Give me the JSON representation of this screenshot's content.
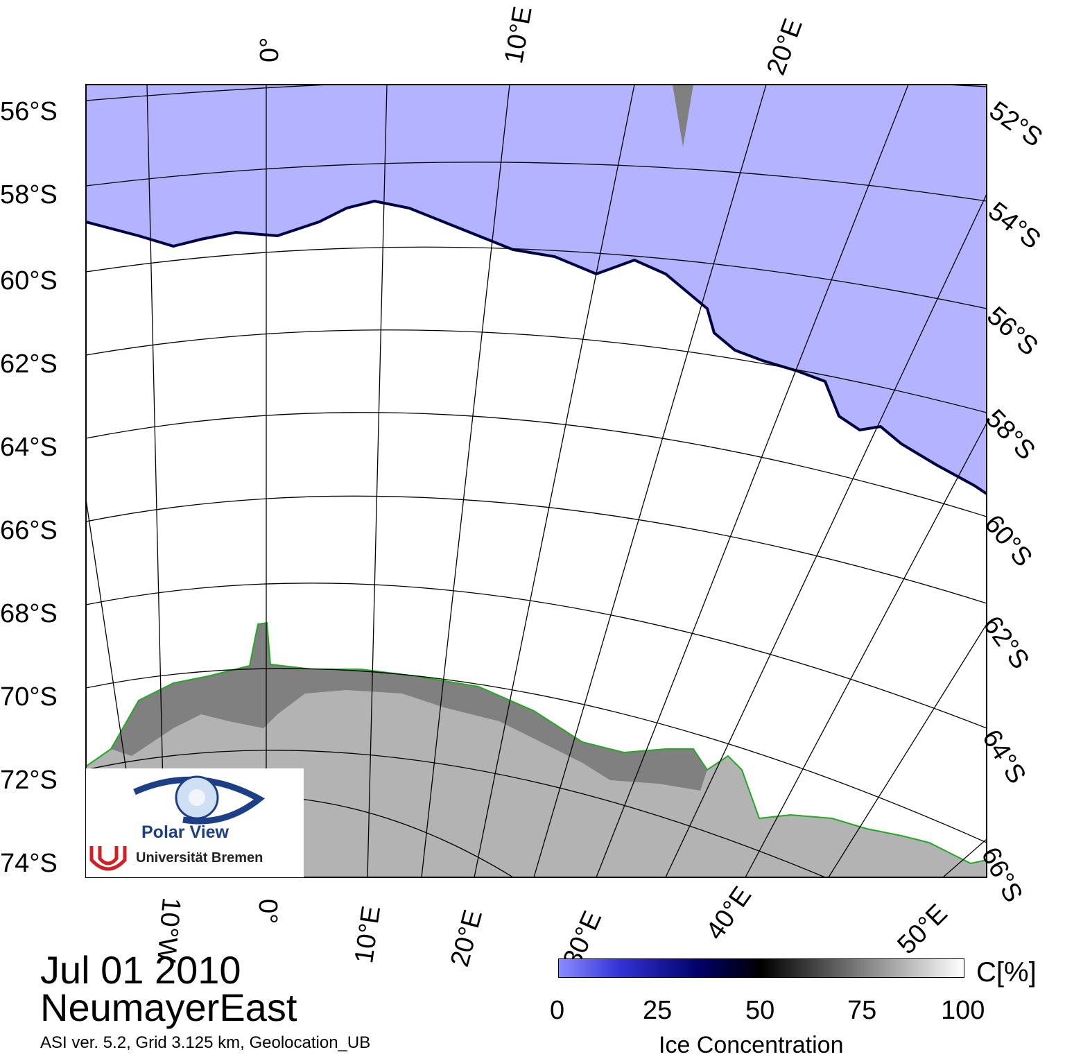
{
  "map": {
    "region": "NeumayerEast",
    "date": "Jul 01 2010",
    "metadata": "ASI ver. 5.2,  Grid 3.125 km, Geolocation_UB",
    "colors": {
      "open_water": "#b3b3ff",
      "land": "#b3b3b3",
      "shelf_ice": "#808080",
      "coastline": "#22aa22",
      "ice": "#ffffff"
    }
  },
  "lat_labels_left": [
    "56°S",
    "58°S",
    "60°S",
    "62°S",
    "64°S",
    "66°S",
    "68°S",
    "70°S",
    "72°S",
    "74°S"
  ],
  "lat_labels_right": [
    "52°S",
    "54°S",
    "56°S",
    "58°S",
    "60°S",
    "62°S",
    "64°S",
    "66°S"
  ],
  "lon_labels_top": [
    "0°",
    "10°E",
    "20°E"
  ],
  "lon_labels_bottom": [
    "10°W",
    "0°",
    "10°E",
    "20°E",
    "30°E",
    "40°E",
    "50°E"
  ],
  "logo": {
    "line1": "Polar View",
    "line2": "Universität Bremen"
  },
  "colorbar": {
    "ticks": [
      "0",
      "25",
      "50",
      "75",
      "100"
    ],
    "unit": "C[%]",
    "title": "Ice Concentration",
    "colors": [
      "#8a8cff",
      "#000066",
      "#000000",
      "#808080",
      "#ffffff"
    ]
  }
}
